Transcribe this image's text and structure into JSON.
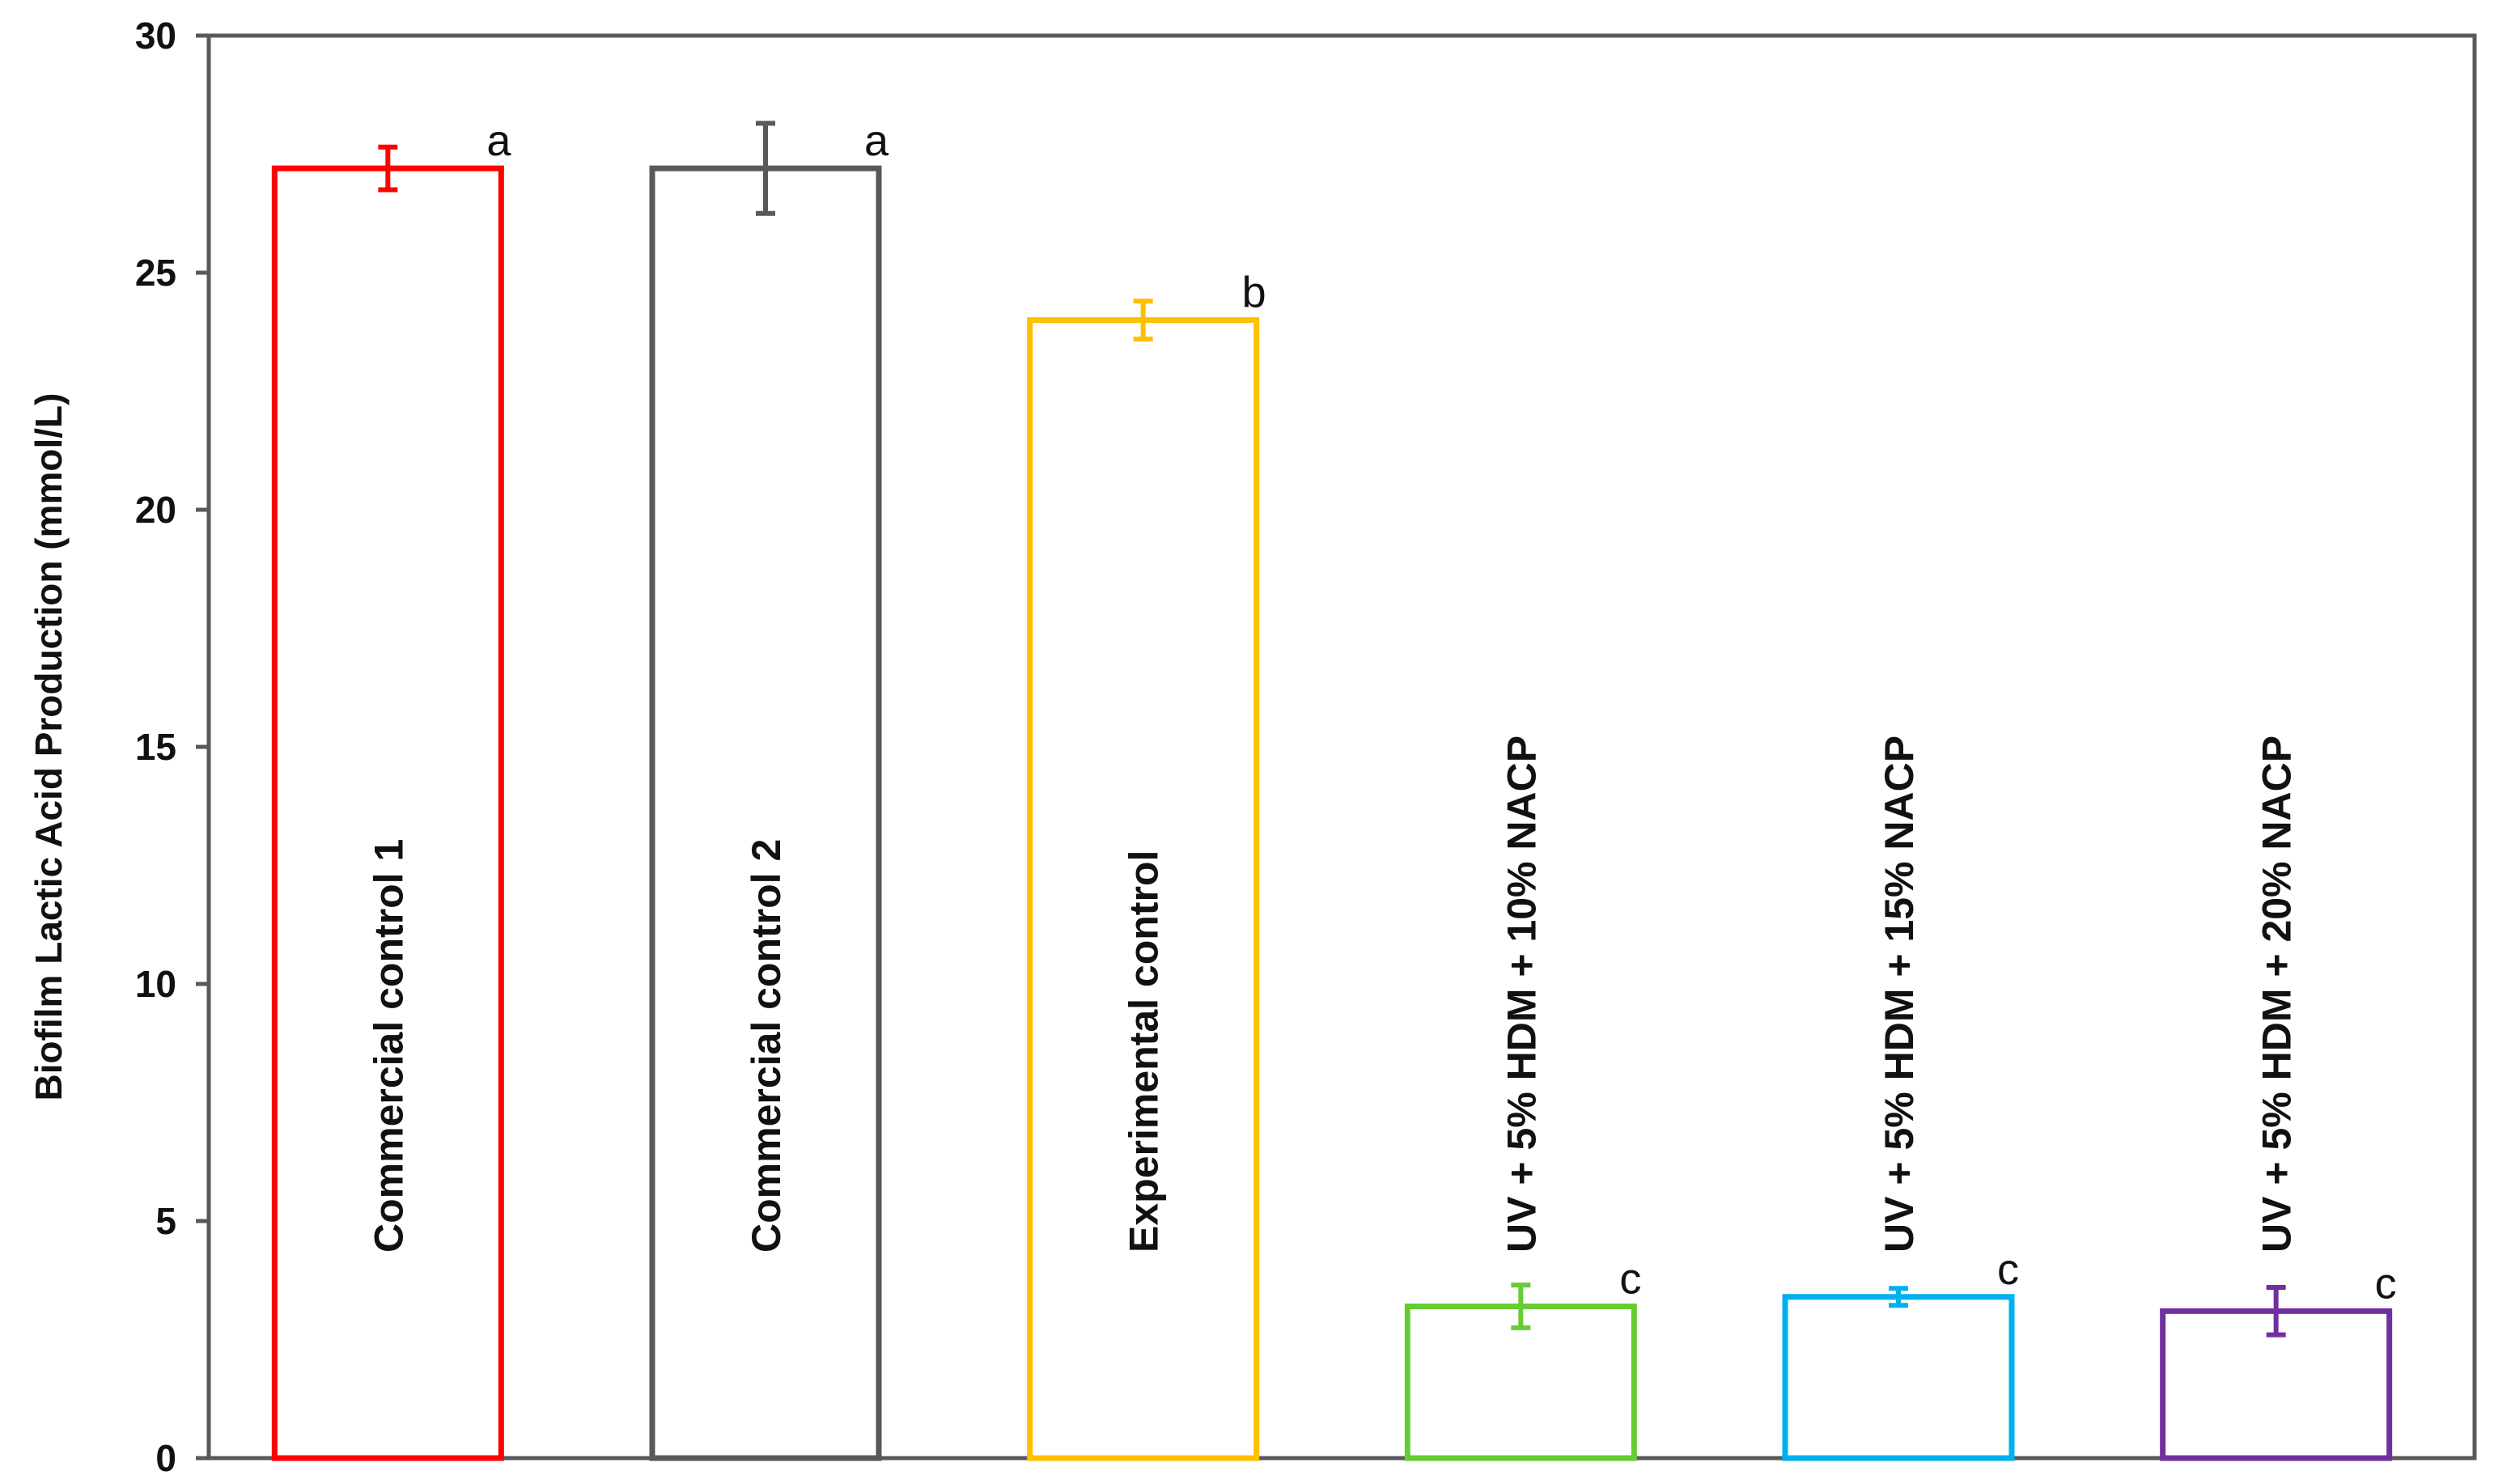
{
  "chart_data": {
    "type": "bar",
    "title": "",
    "xlabel": "",
    "ylabel": "Biofilm Lactic Acid Production (mmol/L)",
    "ylim": [
      0,
      30
    ],
    "yticks": [
      0,
      5,
      10,
      15,
      20,
      25,
      30
    ],
    "grid": false,
    "legend": "none",
    "categories": [
      "Commercial control 1",
      "Commercial control 2",
      "Experimental control",
      "UV + 5% HDM + 10% NACP",
      "UV + 5% HDM + 15% NACP",
      "UV + 5% HDM + 20% NACP"
    ],
    "values": [
      27.2,
      27.2,
      24.0,
      3.2,
      3.4,
      3.1
    ],
    "errors": [
      0.45,
      0.95,
      0.4,
      0.45,
      0.18,
      0.5
    ],
    "significance": [
      "a",
      "a",
      "b",
      "c",
      "c",
      "c"
    ],
    "colors": [
      "#FF0000",
      "#595959",
      "#FFC000",
      "#66CC33",
      "#00B0F0",
      "#7030A0"
    ]
  }
}
